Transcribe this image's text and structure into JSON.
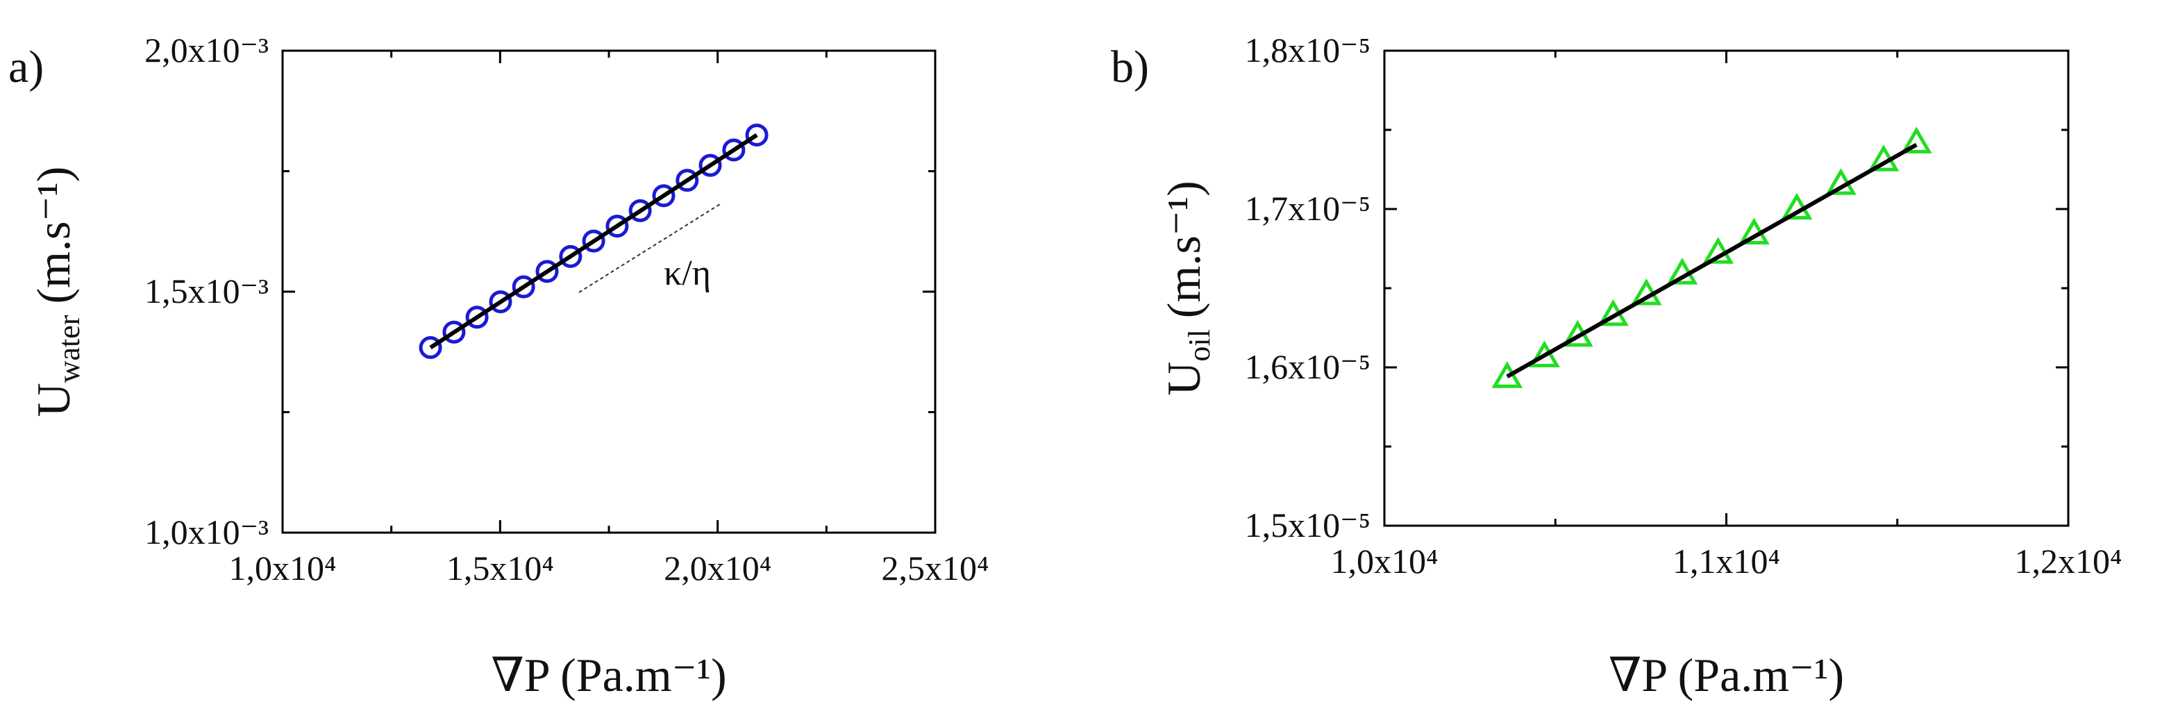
{
  "chart_data": [
    {
      "type": "scatter",
      "panel_label": "a)",
      "xlabel": "∇P (Pa.m⁻¹)",
      "ylabel": {
        "main": "U",
        "sub": "water",
        "unit": "(m.s⁻¹)"
      },
      "annotation": "κ/η",
      "xlim": [
        10000,
        25000
      ],
      "xticks": [
        {
          "value": 10000,
          "label": "1,0x10⁴"
        },
        {
          "value": 15000,
          "label": "1,5x10⁴"
        },
        {
          "value": 20000,
          "label": "2,0x10⁴"
        },
        {
          "value": 25000,
          "label": "2,5x10⁴"
        }
      ],
      "ylim": [
        0.001,
        0.002
      ],
      "yticks": [
        {
          "value": 0.001,
          "label": "1,0x10⁻³"
        },
        {
          "value": 0.0015,
          "label": "1,5x10⁻³"
        },
        {
          "value": 0.002,
          "label": "2,0x10⁻³"
        }
      ],
      "series": [
        {
          "color": "#1a1ad6",
          "marker": "circle",
          "x": [
            13400,
            13940,
            14470,
            15010,
            15540,
            16080,
            16620,
            17150,
            17690,
            18220,
            18760,
            19300,
            19830,
            20370,
            20900
          ],
          "values": [
            0.001384,
            0.001416,
            0.001447,
            0.001479,
            0.00151,
            0.001542,
            0.001573,
            0.001605,
            0.001636,
            0.001668,
            0.001699,
            0.001731,
            0.001762,
            0.001794,
            0.001825
          ]
        },
        {
          "color": "#000000",
          "marker": "line",
          "x": [
            13400,
            20900
          ],
          "values": [
            0.001384,
            0.001825
          ]
        }
      ]
    },
    {
      "type": "scatter",
      "panel_label": "b)",
      "xlabel": "∇P (Pa.m⁻¹)",
      "ylabel": {
        "main": "U",
        "sub": "oil",
        "unit": "(m.s⁻¹)"
      },
      "xlim": [
        10000,
        12000
      ],
      "xticks": [
        {
          "value": 10000,
          "label": "1,0x10⁴"
        },
        {
          "value": 11000,
          "label": "1,1x10⁴"
        },
        {
          "value": 12000,
          "label": "1,2x10⁴"
        }
      ],
      "ylim": [
        1.5e-05,
        1.8e-05
      ],
      "yticks": [
        {
          "value": 1.5e-05,
          "label": "1,5x10⁻⁵"
        },
        {
          "value": 1.6e-05,
          "label": "1,6x10⁻⁵"
        },
        {
          "value": 1.7e-05,
          "label": "1,7x10⁻⁵"
        },
        {
          "value": 1.8e-05,
          "label": "1,8x10⁻⁵"
        }
      ],
      "series": [
        {
          "color": "#22dd22",
          "marker": "triangle",
          "x": [
            10359,
            10468,
            10565,
            10669,
            10766,
            10871,
            10976,
            11081,
            11206,
            11335,
            11460,
            11556
          ],
          "values": [
            1.5933e-05,
            1.6064e-05,
            1.6194e-05,
            1.6325e-05,
            1.6456e-05,
            1.6587e-05,
            1.6718e-05,
            1.684e-05,
            1.6997e-05,
            1.7153e-05,
            1.7302e-05,
            1.7415e-05
          ]
        },
        {
          "color": "#000000",
          "marker": "line",
          "x": [
            10359,
            11556
          ],
          "values": [
            1.5942e-05,
            1.7406e-05
          ]
        }
      ]
    }
  ]
}
